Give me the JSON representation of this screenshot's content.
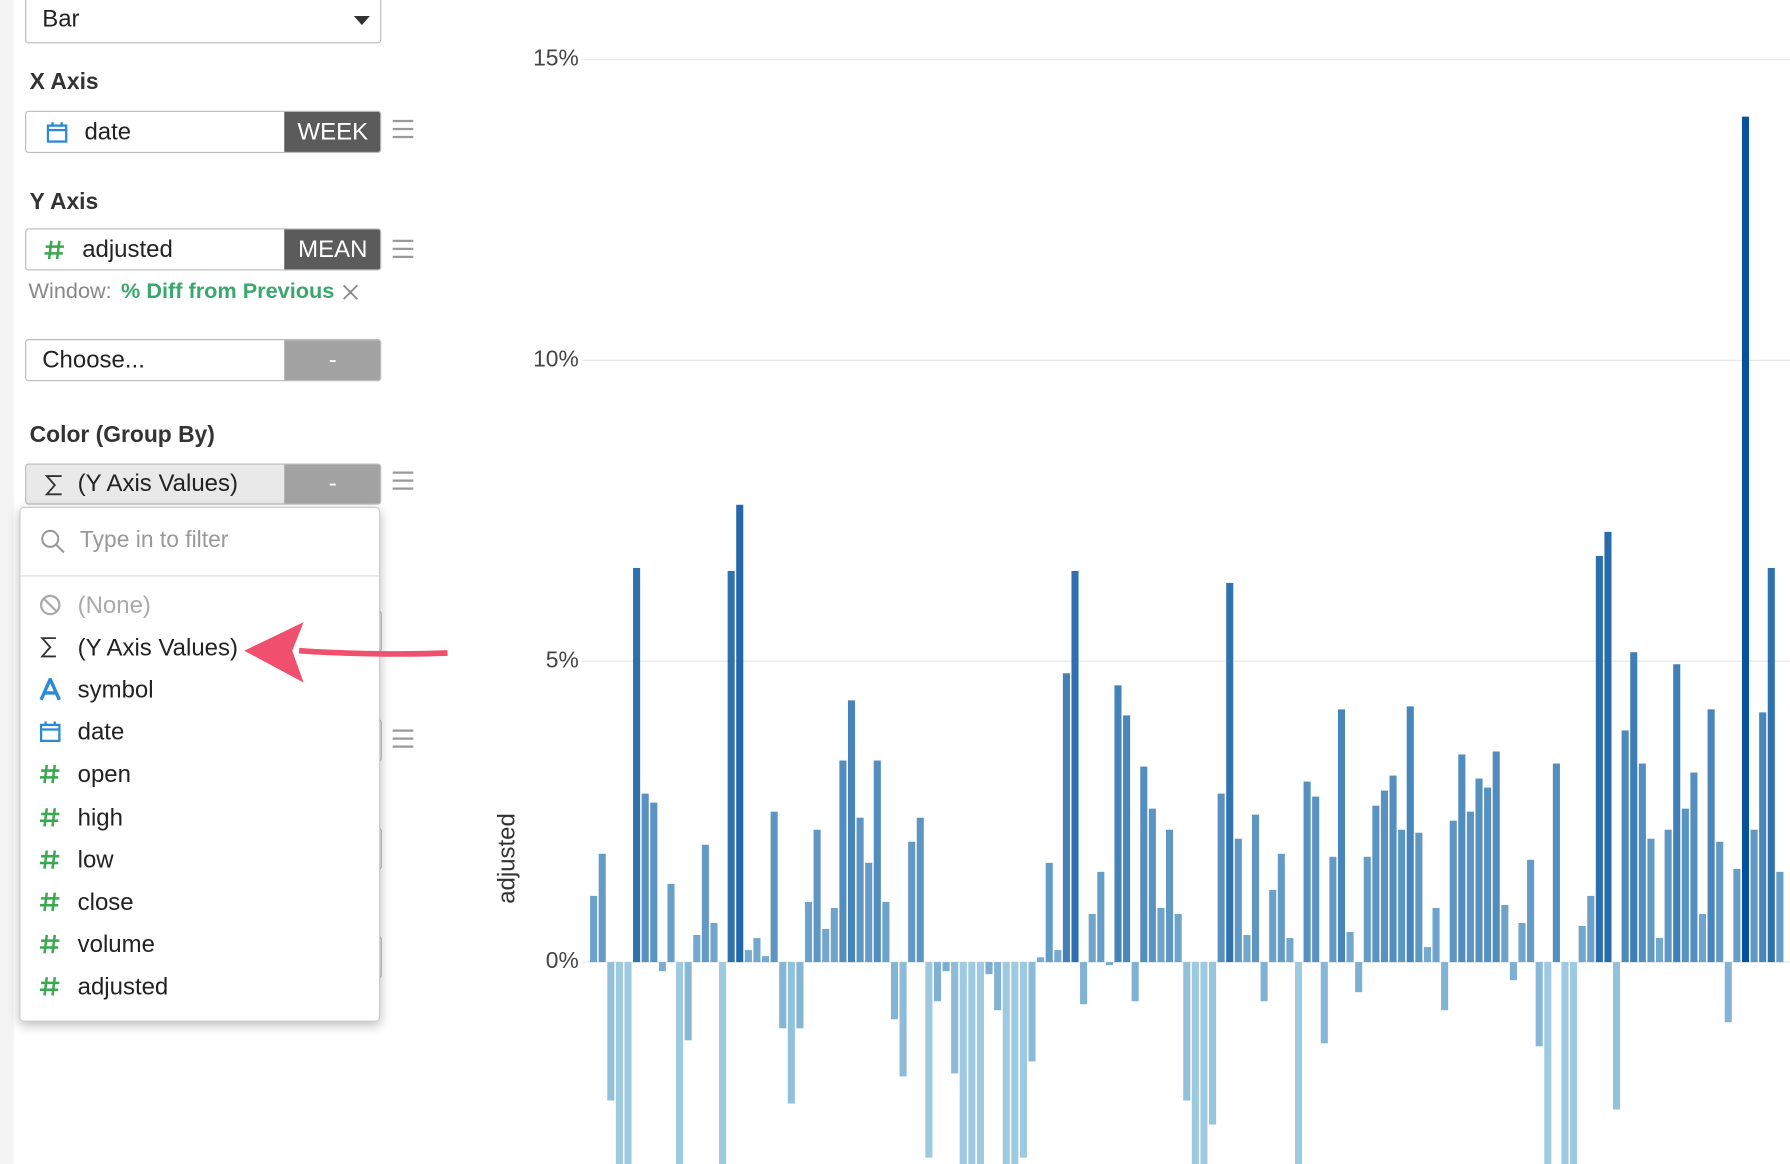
{
  "sidebar": {
    "chart_type": "Bar",
    "x_axis": {
      "label": "X Axis",
      "field": "date",
      "agg": "WEEK"
    },
    "y_axis": {
      "label": "Y Axis",
      "field": "adjusted",
      "agg": "MEAN",
      "window_label": "Window:",
      "window_value": "% Diff from Previous"
    },
    "extra": {
      "field": "Choose...",
      "agg": "-"
    },
    "color": {
      "label": "Color (Group By)",
      "field": "(Y Axis Values)",
      "agg": "-"
    }
  },
  "dropdown": {
    "placeholder": "Type in to filter",
    "items": [
      {
        "icon": "none",
        "label": "(None)"
      },
      {
        "icon": "sum",
        "label": "(Y Axis Values)"
      },
      {
        "icon": "text",
        "label": "symbol"
      },
      {
        "icon": "date",
        "label": "date"
      },
      {
        "icon": "number",
        "label": "open"
      },
      {
        "icon": "number",
        "label": "high"
      },
      {
        "icon": "number",
        "label": "low"
      },
      {
        "icon": "number",
        "label": "close"
      },
      {
        "icon": "number",
        "label": "volume"
      },
      {
        "icon": "number",
        "label": "adjusted"
      }
    ]
  },
  "chart_data": {
    "type": "bar",
    "y_label": "adjusted",
    "ylim": [
      -3.4,
      16
    ],
    "yticks": [
      {
        "value": 0,
        "label": "0%"
      },
      {
        "value": 5,
        "label": "5%"
      },
      {
        "value": 10,
        "label": "10%"
      },
      {
        "value": 15,
        "label": "15%"
      }
    ],
    "grid": true,
    "colors": [
      "#9ecae1",
      "#08519c"
    ],
    "values": [
      1.1,
      1.8,
      -2.3,
      -3.4,
      -3.4,
      6.55,
      2.8,
      2.65,
      -0.15,
      1.3,
      -3.4,
      -1.3,
      0.45,
      1.95,
      0.65,
      -3.4,
      6.5,
      7.6,
      0.2,
      0.4,
      0.1,
      2.5,
      -1.1,
      -2.35,
      -1.1,
      1.0,
      2.2,
      0.55,
      0.9,
      3.35,
      4.35,
      2.4,
      1.65,
      3.35,
      1.0,
      -0.95,
      -1.9,
      2.0,
      2.4,
      -3.25,
      -0.65,
      -0.15,
      -1.85,
      -3.4,
      -3.4,
      -3.4,
      -0.2,
      -0.8,
      -3.4,
      -3.4,
      -3.25,
      -1.65,
      0.08,
      1.65,
      0.2,
      4.8,
      6.5,
      -0.7,
      0.8,
      1.5,
      -0.05,
      4.6,
      4.1,
      -0.65,
      3.25,
      2.55,
      0.9,
      2.2,
      0.8,
      -2.3,
      -3.4,
      -3.4,
      -2.7,
      2.8,
      6.3,
      2.05,
      0.45,
      2.45,
      -0.65,
      1.2,
      1.8,
      0.4,
      -3.4,
      3.0,
      2.75,
      -1.35,
      1.75,
      4.2,
      0.5,
      -0.5,
      1.75,
      2.6,
      2.85,
      3.1,
      2.2,
      4.25,
      2.15,
      0.25,
      0.9,
      -0.8,
      2.35,
      3.45,
      2.5,
      3.05,
      2.9,
      3.5,
      0.95,
      -0.3,
      0.65,
      1.7,
      -1.4,
      -3.4,
      3.3,
      -3.4,
      -3.4,
      0.6,
      1.1,
      6.75,
      7.15,
      -2.45,
      3.85,
      5.15,
      3.3,
      2.05,
      0.4,
      2.2,
      4.95,
      2.55,
      3.15,
      0.8,
      4.2,
      2.0,
      -1.0,
      1.55,
      14.05,
      2.2,
      4.15,
      6.55,
      1.5
    ]
  }
}
